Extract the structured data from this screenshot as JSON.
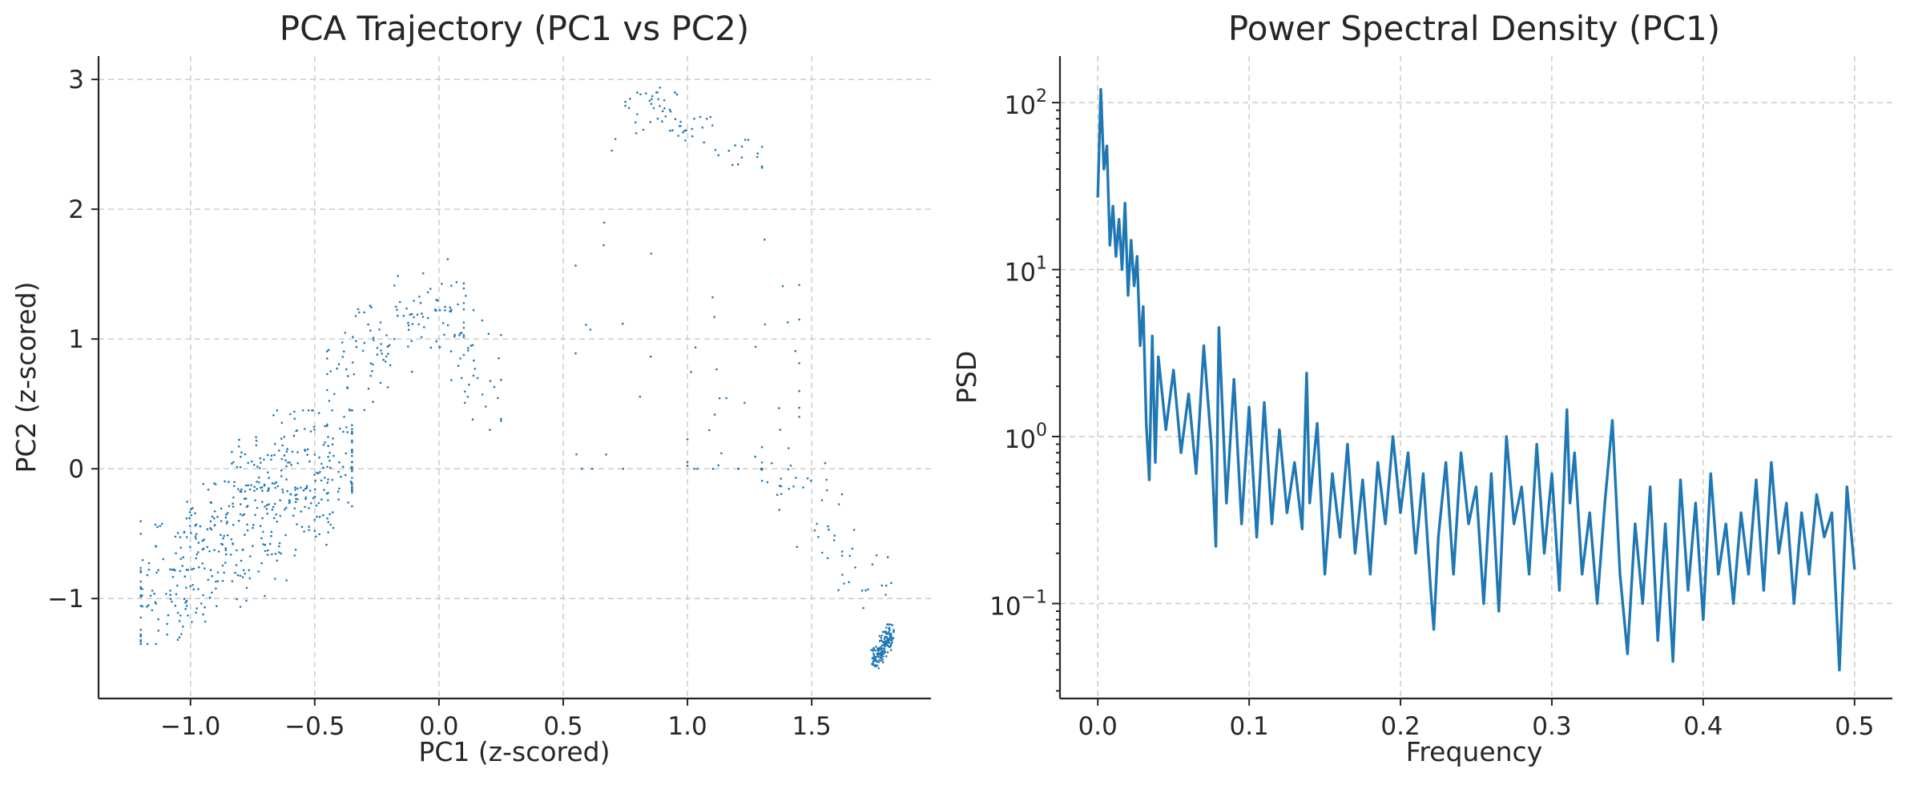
{
  "chart_data": [
    {
      "type": "scatter",
      "title": "PCA Trajectory (PC1 vs PC2)",
      "xlabel": "PC1 (z-scored)",
      "ylabel": "PC2 (z-scored)",
      "xlim": [
        -1.37,
        1.98
      ],
      "ylim": [
        -1.77,
        3.18
      ],
      "xticks": [
        -1.0,
        -0.5,
        0.0,
        0.5,
        1.0,
        1.5
      ],
      "xtick_labels": [
        "−1.0",
        "−0.5",
        "0.0",
        "0.5",
        "1.0",
        "1.5"
      ],
      "yticks": [
        -1,
        0,
        1,
        2,
        3
      ],
      "ytick_labels": [
        "−1",
        "0",
        "1",
        "2",
        "3"
      ],
      "grid": true,
      "color": "#1f77b4",
      "clusters": [
        {
          "x": [
            -1.2,
            -0.35
          ],
          "y": [
            -1.35,
            0.45
          ],
          "trend": [
            [
              -1.2,
              -1.05
            ],
            [
              -0.35,
              0.25
            ]
          ],
          "spread": 0.32,
          "n": 520
        },
        {
          "x": [
            -0.45,
            0.1
          ],
          "y": [
            0.4,
            1.7
          ],
          "trend": [
            [
              -0.45,
              0.7
            ],
            [
              0.1,
              1.3
            ]
          ],
          "spread": 0.35,
          "n": 130
        },
        {
          "x": [
            0.05,
            0.25
          ],
          "y": [
            0.3,
            1.5
          ],
          "trend": [
            [
              0.05,
              0.9
            ],
            [
              0.25,
              0.6
            ]
          ],
          "spread": 0.5,
          "n": 35
        },
        {
          "x": [
            0.55,
            0.95
          ],
          "y": [
            0.0,
            2.9
          ],
          "trend": [
            [
              0.6,
              0.3
            ],
            [
              0.85,
              2.85
            ]
          ],
          "spread": 0.6,
          "n": 25
        },
        {
          "x": [
            0.75,
            1.3
          ],
          "y": [
            2.2,
            2.95
          ],
          "trend": [
            [
              0.75,
              2.85
            ],
            [
              1.3,
              2.4
            ]
          ],
          "spread": 0.25,
          "n": 60
        },
        {
          "x": [
            1.0,
            1.45
          ],
          "y": [
            0.0,
            2.0
          ],
          "trend": [
            [
              1.05,
              0.1
            ],
            [
              1.4,
              1.2
            ]
          ],
          "spread": 0.6,
          "n": 35
        },
        {
          "x": [
            1.3,
            1.82
          ],
          "y": [
            -1.2,
            0.3
          ],
          "trend": [
            [
              1.3,
              0.2
            ],
            [
              1.8,
              -1.0
            ]
          ],
          "spread": 0.25,
          "n": 60
        },
        {
          "x": [
            1.74,
            1.83
          ],
          "y": [
            -1.55,
            -1.2
          ],
          "trend": [
            [
              1.75,
              -1.5
            ],
            [
              1.82,
              -1.25
            ]
          ],
          "spread": 0.3,
          "n": 160
        }
      ]
    },
    {
      "type": "line",
      "title": "Power Spectral Density (PC1)",
      "xlabel": "Frequency",
      "ylabel": "PSD",
      "xlim": [
        -0.025,
        0.525
      ],
      "ylim": [
        0.027,
        190
      ],
      "yscale": "log",
      "xticks": [
        0.0,
        0.1,
        0.2,
        0.3,
        0.4,
        0.5
      ],
      "xtick_labels": [
        "0.0",
        "0.1",
        "0.2",
        "0.3",
        "0.4",
        "0.5"
      ],
      "yticks": [
        0.1,
        1,
        10,
        100
      ],
      "ytick_labels": [
        "10",
        "10",
        "10",
        "10"
      ],
      "ytick_exponents": [
        "−1",
        "0",
        "1",
        "2"
      ],
      "grid": true,
      "color": "#1f77b4",
      "x": [
        0.0,
        0.002,
        0.004,
        0.006,
        0.008,
        0.01,
        0.012,
        0.014,
        0.016,
        0.018,
        0.02,
        0.022,
        0.024,
        0.026,
        0.028,
        0.03,
        0.032,
        0.034,
        0.036,
        0.038,
        0.04,
        0.045,
        0.05,
        0.055,
        0.06,
        0.065,
        0.07,
        0.075,
        0.078,
        0.08,
        0.085,
        0.09,
        0.095,
        0.1,
        0.105,
        0.11,
        0.115,
        0.12,
        0.125,
        0.13,
        0.135,
        0.138,
        0.14,
        0.145,
        0.15,
        0.155,
        0.16,
        0.165,
        0.17,
        0.175,
        0.18,
        0.185,
        0.19,
        0.195,
        0.2,
        0.205,
        0.21,
        0.215,
        0.22,
        0.222,
        0.225,
        0.23,
        0.235,
        0.24,
        0.245,
        0.25,
        0.255,
        0.26,
        0.265,
        0.27,
        0.275,
        0.28,
        0.285,
        0.29,
        0.295,
        0.3,
        0.305,
        0.31,
        0.312,
        0.315,
        0.32,
        0.325,
        0.33,
        0.335,
        0.34,
        0.345,
        0.35,
        0.355,
        0.36,
        0.365,
        0.37,
        0.375,
        0.38,
        0.385,
        0.39,
        0.395,
        0.4,
        0.405,
        0.41,
        0.415,
        0.42,
        0.425,
        0.43,
        0.435,
        0.44,
        0.445,
        0.45,
        0.455,
        0.46,
        0.465,
        0.47,
        0.475,
        0.48,
        0.485,
        0.49,
        0.495,
        0.5
      ],
      "y": [
        27,
        120,
        40,
        55,
        14,
        24,
        12,
        20,
        10,
        25,
        7,
        15,
        8,
        12,
        3.5,
        6,
        1.2,
        0.55,
        4,
        0.7,
        3,
        1.1,
        2.5,
        0.8,
        1.8,
        0.6,
        3.5,
        0.9,
        0.22,
        4.5,
        0.4,
        2.2,
        0.3,
        1.5,
        0.25,
        1.6,
        0.3,
        1.1,
        0.35,
        0.7,
        0.28,
        2.4,
        0.4,
        1.2,
        0.15,
        0.6,
        0.25,
        0.9,
        0.2,
        0.55,
        0.15,
        0.7,
        0.3,
        1.0,
        0.35,
        0.8,
        0.2,
        0.6,
        0.12,
        0.07,
        0.25,
        0.7,
        0.15,
        0.8,
        0.3,
        0.5,
        0.1,
        0.6,
        0.09,
        1.0,
        0.3,
        0.5,
        0.15,
        0.9,
        0.2,
        0.6,
        0.12,
        1.45,
        0.4,
        0.8,
        0.15,
        0.35,
        0.1,
        0.4,
        1.25,
        0.15,
        0.05,
        0.3,
        0.1,
        0.5,
        0.06,
        0.3,
        0.045,
        0.55,
        0.12,
        0.4,
        0.08,
        0.6,
        0.15,
        0.3,
        0.1,
        0.35,
        0.15,
        0.55,
        0.12,
        0.7,
        0.2,
        0.4,
        0.1,
        0.35,
        0.15,
        0.45,
        0.25,
        0.35,
        0.04,
        0.5,
        0.16
      ]
    }
  ]
}
